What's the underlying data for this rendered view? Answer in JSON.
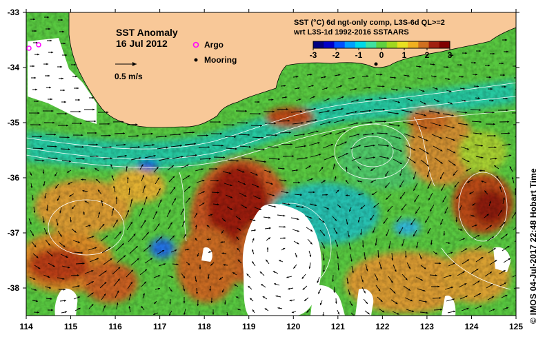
{
  "title": {
    "line1": "SST Anomaly",
    "line2": "16 Jul 2012"
  },
  "legend": {
    "argo_label": "Argo",
    "mooring_label": "Mooring",
    "scale_label": "0.5 m/s",
    "argo_color": "#ff00ff",
    "mooring_color": "#000000"
  },
  "colorbar": {
    "title1": "SST (°C) 6d ngt-only comp, L3S-6d QL>=2",
    "title2": "wrt L3S-1d 1992-2016 SSTAARS",
    "ticks": [
      "-3",
      "-2",
      "-1",
      "0",
      "1",
      "2",
      "3"
    ],
    "colors": [
      "#000080",
      "#0000c8",
      "#0050ff",
      "#00a0ff",
      "#00d8e8",
      "#40e0a0",
      "#60d040",
      "#a0d820",
      "#e8e020",
      "#f0b020",
      "#d07020",
      "#a02010",
      "#800000"
    ]
  },
  "axes": {
    "x_ticks": [
      "114",
      "115",
      "116",
      "117",
      "118",
      "119",
      "120",
      "121",
      "122",
      "123",
      "124",
      "125"
    ],
    "y_ticks": [
      "-33",
      "-34",
      "-35",
      "-36",
      "-37",
      "-38"
    ],
    "xlim": [
      114,
      125
    ],
    "ylim": [
      -38.5,
      -33
    ]
  },
  "colors": {
    "land": "#f8c898",
    "coast_line": "#000000",
    "contour": "#ffffff"
  },
  "credit": "©  IMOS 04-Jul-2017 22:48 Hobart Time"
}
